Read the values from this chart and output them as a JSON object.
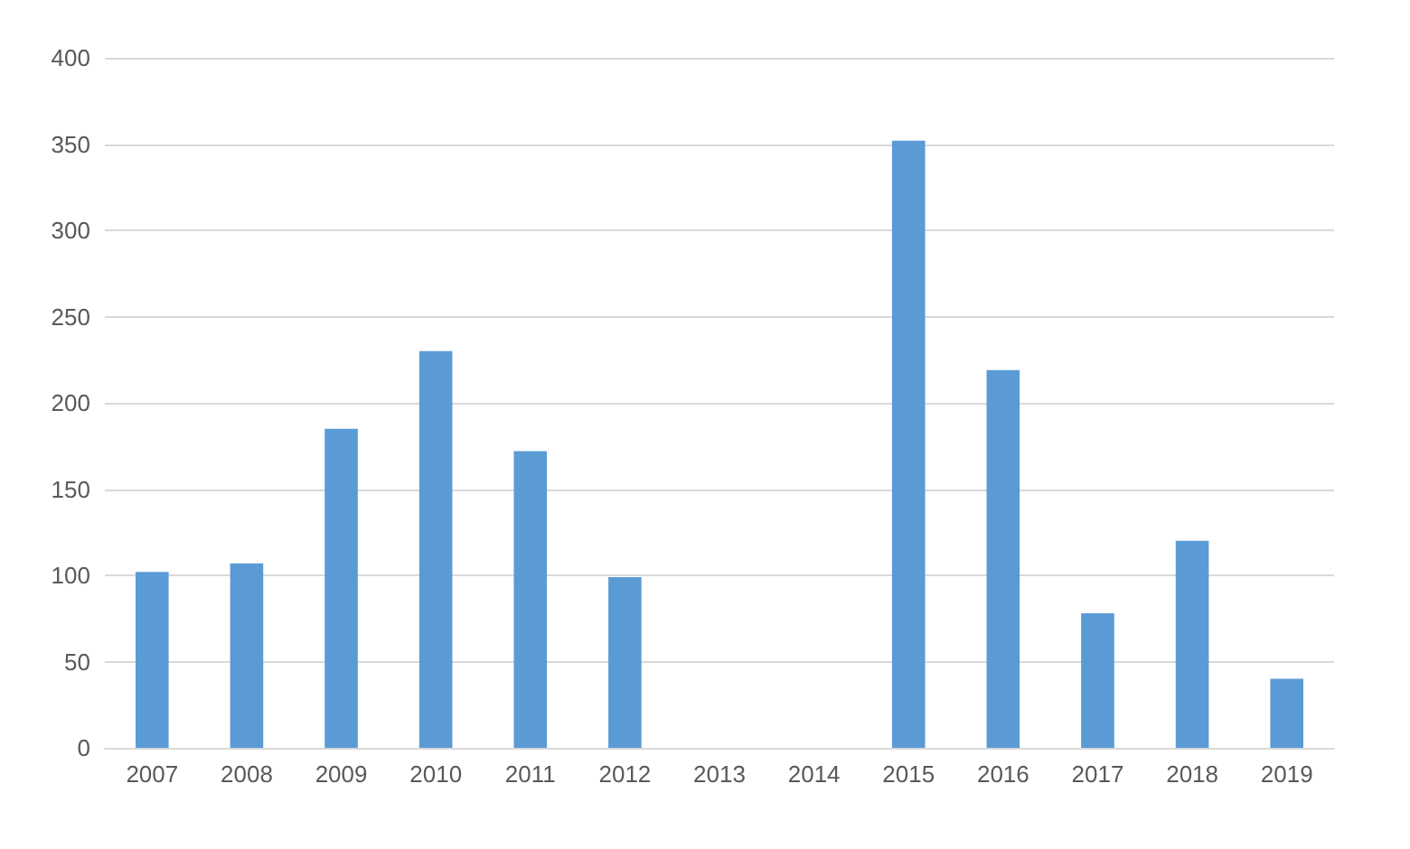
{
  "chart_data": {
    "type": "bar",
    "categories": [
      "2007",
      "2008",
      "2009",
      "2010",
      "2011",
      "2012",
      "2013",
      "2014",
      "2015",
      "2016",
      "2017",
      "2018",
      "2019"
    ],
    "values": [
      102,
      107,
      185,
      230,
      172,
      99,
      0,
      0,
      352,
      219,
      78,
      120,
      40
    ],
    "color": "#5b9bd5",
    "ylim": [
      0,
      400
    ],
    "yticks": [
      0,
      50,
      100,
      150,
      200,
      250,
      300,
      350,
      400
    ],
    "grid": "y"
  }
}
